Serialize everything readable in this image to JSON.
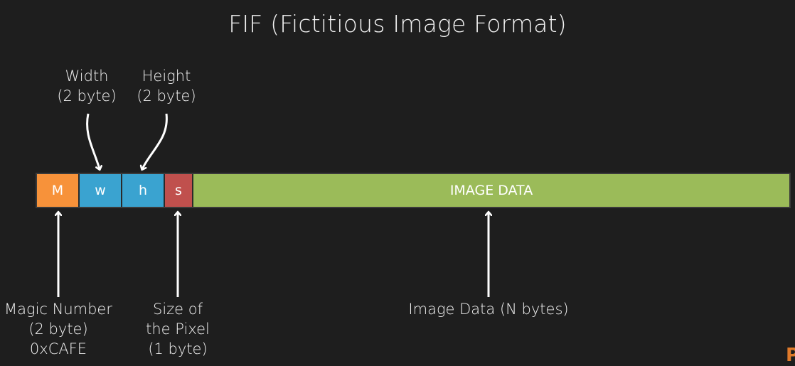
{
  "title": "FIF (Fictitious Image Format)",
  "colors": {
    "magic": "#f7923a",
    "width": "#3aa3d0",
    "height": "#3aa3d0",
    "size": "#c0504d",
    "data": "#9bbb59"
  },
  "segments": {
    "magic": "M",
    "width": "w",
    "height": "h",
    "size": "s",
    "data": "IMAGE DATA"
  },
  "labels": {
    "width": [
      "Width",
      "(2 byte)"
    ],
    "height": [
      "Height",
      "(2 byte)"
    ],
    "magic": [
      "Magic Number",
      "(2 byte)",
      "0xCAFE"
    ],
    "size": [
      "Size of",
      "the Pixel",
      "(1 byte)"
    ],
    "data": [
      "Image Data (N bytes)"
    ]
  },
  "brand": "P"
}
